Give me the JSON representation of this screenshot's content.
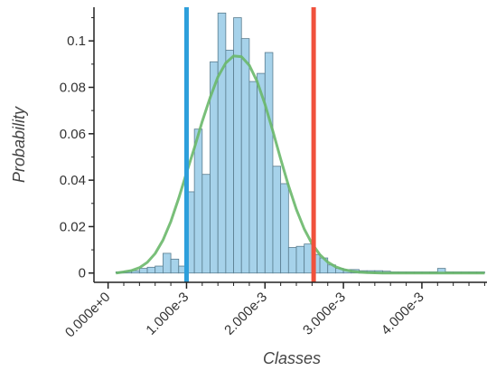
{
  "chart_data": {
    "type": "bar",
    "xlabel": "Classes",
    "ylabel": "Probability",
    "xlim": [
      -0.00018,
      0.00483
    ],
    "ylim": [
      -0.004,
      0.1145
    ],
    "grid": false,
    "x_ticks": [
      {
        "value": 0.0,
        "label": "0.000e+0"
      },
      {
        "value": 0.001,
        "label": "1.000e-3"
      },
      {
        "value": 0.002,
        "label": "2.000e-3"
      },
      {
        "value": 0.003,
        "label": "3.000e-3"
      },
      {
        "value": 0.004,
        "label": "4.000e-3"
      }
    ],
    "y_ticks": [
      {
        "value": 0,
        "label": "0"
      },
      {
        "value": 0.02,
        "label": "0.02"
      },
      {
        "value": 0.04,
        "label": "0.04"
      },
      {
        "value": 0.06,
        "label": "0.06"
      },
      {
        "value": 0.08,
        "label": "0.08"
      },
      {
        "value": 0.1,
        "label": "0.1"
      }
    ],
    "histogram": {
      "color": "#a6d2ea",
      "edge_color": "#5a7d8f",
      "bin_width": 0.0001,
      "bin_start": [
        0.0001,
        0.0002,
        0.0003,
        0.0004,
        0.0005,
        0.0006,
        0.0007,
        0.0008,
        0.0009,
        0.001,
        0.0011,
        0.0012,
        0.0013,
        0.0014,
        0.0015,
        0.0016,
        0.0017,
        0.0018,
        0.0019,
        0.002,
        0.0021,
        0.0022,
        0.0023,
        0.0024,
        0.0025,
        0.0026,
        0.0027,
        0.0028,
        0.0029,
        0.003,
        0.0031,
        0.0032,
        0.0033,
        0.0034,
        0.0035,
        0.0036,
        0.0037,
        0.0038,
        0.0039,
        0.004,
        0.0041,
        0.0042,
        0.0043,
        0.0044,
        0.0045,
        0.0046,
        0.0047
      ],
      "probability": [
        0.0005,
        0.0008,
        0.001,
        0.002,
        0.0025,
        0.003,
        0.0085,
        0.006,
        0.003,
        0.035,
        0.062,
        0.0425,
        0.091,
        0.112,
        0.096,
        0.11,
        0.101,
        0.0825,
        0.086,
        0.095,
        0.046,
        0.0385,
        0.011,
        0.0115,
        0.0125,
        0.008,
        0.0065,
        0.0035,
        0.002,
        0.0015,
        0.0015,
        0.001,
        0.001,
        0.001,
        0.0008,
        0.0005,
        0.0005,
        0.0005,
        0.0005,
        0.0005,
        0.0005,
        0.002,
        0.0005,
        0.0005,
        0.0005,
        0.0005,
        0.0005
      ]
    },
    "series": [
      {
        "type": "line",
        "color": "#6ab86a",
        "x": [
          0.0001,
          0.0002,
          0.0003,
          0.0004,
          0.0005,
          0.0006,
          0.0007,
          0.0008,
          0.0009,
          0.001,
          0.0011,
          0.0012,
          0.0013,
          0.0014,
          0.0015,
          0.0016,
          0.0017,
          0.0018,
          0.0019,
          0.002,
          0.0021,
          0.0022,
          0.0023,
          0.0024,
          0.0025,
          0.0026,
          0.0027,
          0.0028,
          0.0029,
          0.003,
          0.0031,
          0.0032,
          0.0033,
          0.0034,
          0.0035,
          0.0036,
          0.0037,
          0.0038,
          0.0039,
          0.004,
          0.0041,
          0.0042,
          0.0043,
          0.0044,
          0.0045,
          0.0046,
          0.0047,
          0.0048
        ],
        "y": [
          0.0,
          0.0005,
          0.0011,
          0.0023,
          0.0046,
          0.0084,
          0.0142,
          0.0222,
          0.0322,
          0.0432,
          0.0539,
          0.0653,
          0.0755,
          0.0845,
          0.0905,
          0.0935,
          0.0932,
          0.0895,
          0.0825,
          0.0727,
          0.0612,
          0.0491,
          0.0376,
          0.0274,
          0.019,
          0.0126,
          0.0079,
          0.0047,
          0.0027,
          0.0015,
          0.0008,
          0.0004,
          0.0002,
          0.0001,
          0.0,
          0.0,
          0.0,
          0.0,
          0.0,
          0.0,
          0.0,
          0.0,
          0.0,
          0.0,
          0.0,
          0.0,
          0.0,
          0.0
        ]
      }
    ],
    "vertical_lines": [
      {
        "x": 0.001,
        "color": "#2d9fdb"
      },
      {
        "x": 0.00262,
        "color": "#f0513c"
      }
    ]
  }
}
